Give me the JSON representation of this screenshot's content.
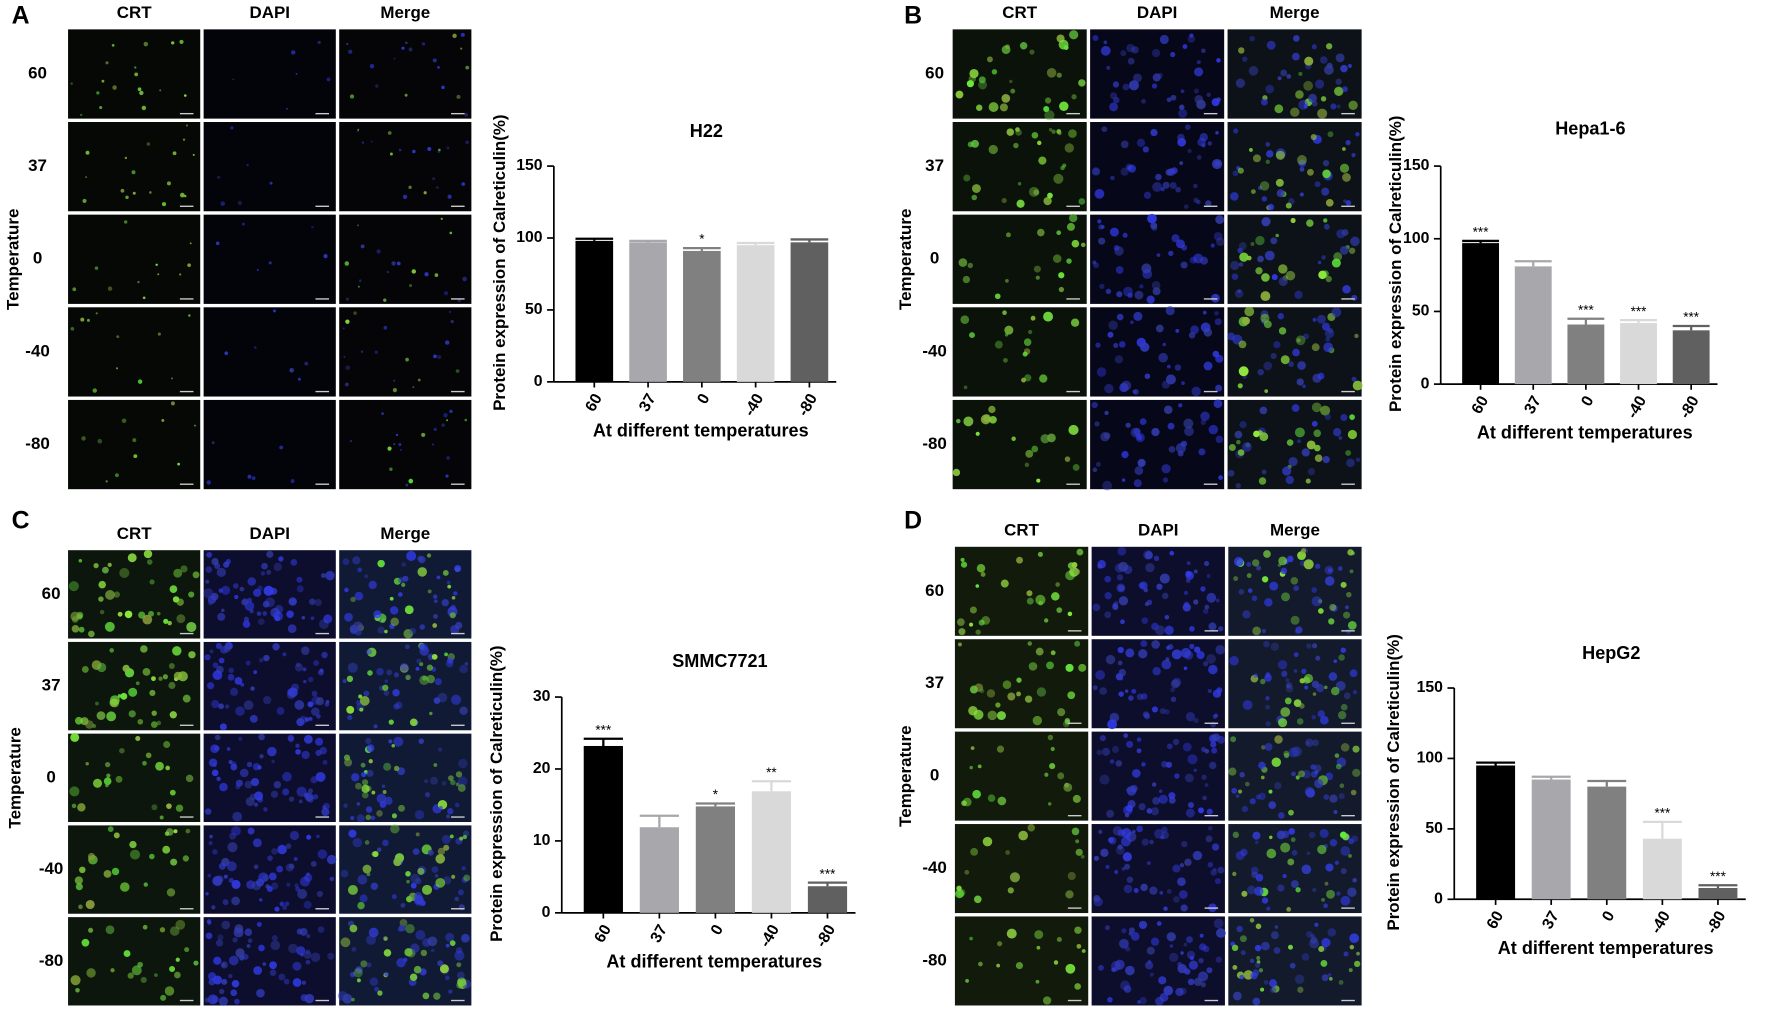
{
  "image_panels": [
    {
      "letter": "A",
      "columns": [
        "CRT",
        "DAPI",
        "Merge"
      ],
      "rows": [
        "60",
        "37",
        "0",
        "-40",
        "-80"
      ],
      "row_label": "Temperature"
    },
    {
      "letter": "B",
      "columns": [
        "CRT",
        "DAPI",
        "Merge"
      ],
      "rows": [
        "60",
        "37",
        "0",
        "-40",
        "-80"
      ],
      "row_label": "Temperature"
    },
    {
      "letter": "C",
      "columns": [
        "CRT",
        "DAPI",
        "Merge"
      ],
      "rows": [
        "60",
        "37",
        "0",
        "-40",
        "-80"
      ],
      "row_label": "Temperature"
    },
    {
      "letter": "D",
      "columns": [
        "CRT",
        "DAPI",
        "Merge"
      ],
      "rows": [
        "60",
        "37",
        "0",
        "-40",
        "-80"
      ],
      "row_label": "Temperature"
    }
  ],
  "chart_data": [
    {
      "type": "bar",
      "title": "H22",
      "x_label": "At different temperatures",
      "y_label": "Protein expression of Calreticulin(%)",
      "categories": [
        "60",
        "37",
        "0",
        "-40",
        "-80"
      ],
      "values": [
        98,
        97,
        91,
        95,
        97
      ],
      "errors": [
        1.5,
        1,
        2,
        1.5,
        2
      ],
      "annotations": [
        null,
        null,
        "*",
        null,
        null
      ],
      "colors": [
        "#000000",
        "#a7a7ac",
        "#808080",
        "#d9d9d9",
        "#606060"
      ],
      "ylim": [
        0,
        150
      ],
      "yticks": [
        0,
        50,
        100,
        150
      ]
    },
    {
      "type": "bar",
      "title": "Hepa1-6",
      "x_label": "At different temperatures",
      "y_label": "Protein expression of Calreticulin(%)",
      "categories": [
        "60",
        "37",
        "0",
        "-40",
        "-80"
      ],
      "values": [
        97,
        81,
        41,
        42,
        37
      ],
      "errors": [
        1.5,
        3.5,
        4,
        2,
        3
      ],
      "annotations": [
        "***",
        null,
        "***",
        "***",
        "***"
      ],
      "colors": [
        "#000000",
        "#a7a7ac",
        "#808080",
        "#d9d9d9",
        "#606060"
      ],
      "ylim": [
        0,
        150
      ],
      "yticks": [
        0,
        50,
        100,
        150
      ]
    },
    {
      "type": "bar",
      "title": "SMMC7721",
      "x_label": "At different temperatures",
      "y_label": "Protein expression of Calreticulin(%)",
      "categories": [
        "60",
        "37",
        "0",
        "-40",
        "-80"
      ],
      "values": [
        23.2,
        11.9,
        14.8,
        16.9,
        3.7
      ],
      "errors": [
        1,
        1.6,
        0.4,
        1.4,
        0.5
      ],
      "annotations": [
        "***",
        null,
        "*",
        "**",
        "***"
      ],
      "colors": [
        "#000000",
        "#a7a7ac",
        "#808080",
        "#d9d9d9",
        "#606060"
      ],
      "ylim": [
        0,
        30
      ],
      "yticks": [
        0,
        10,
        20,
        30
      ]
    },
    {
      "type": "bar",
      "title": "HepG2",
      "x_label": "At different temperatures",
      "y_label": "Protein expression of Calreticulin(%)",
      "categories": [
        "60",
        "37",
        "0",
        "-40",
        "-80"
      ],
      "values": [
        95,
        85,
        80,
        43,
        8
      ],
      "errors": [
        2,
        2,
        4,
        12,
        2
      ],
      "annotations": [
        null,
        null,
        null,
        "***",
        "***"
      ],
      "colors": [
        "#000000",
        "#a7a7ac",
        "#808080",
        "#d9d9d9",
        "#606060"
      ],
      "ylim": [
        0,
        150
      ],
      "yticks": [
        0,
        50,
        100,
        150
      ]
    }
  ]
}
